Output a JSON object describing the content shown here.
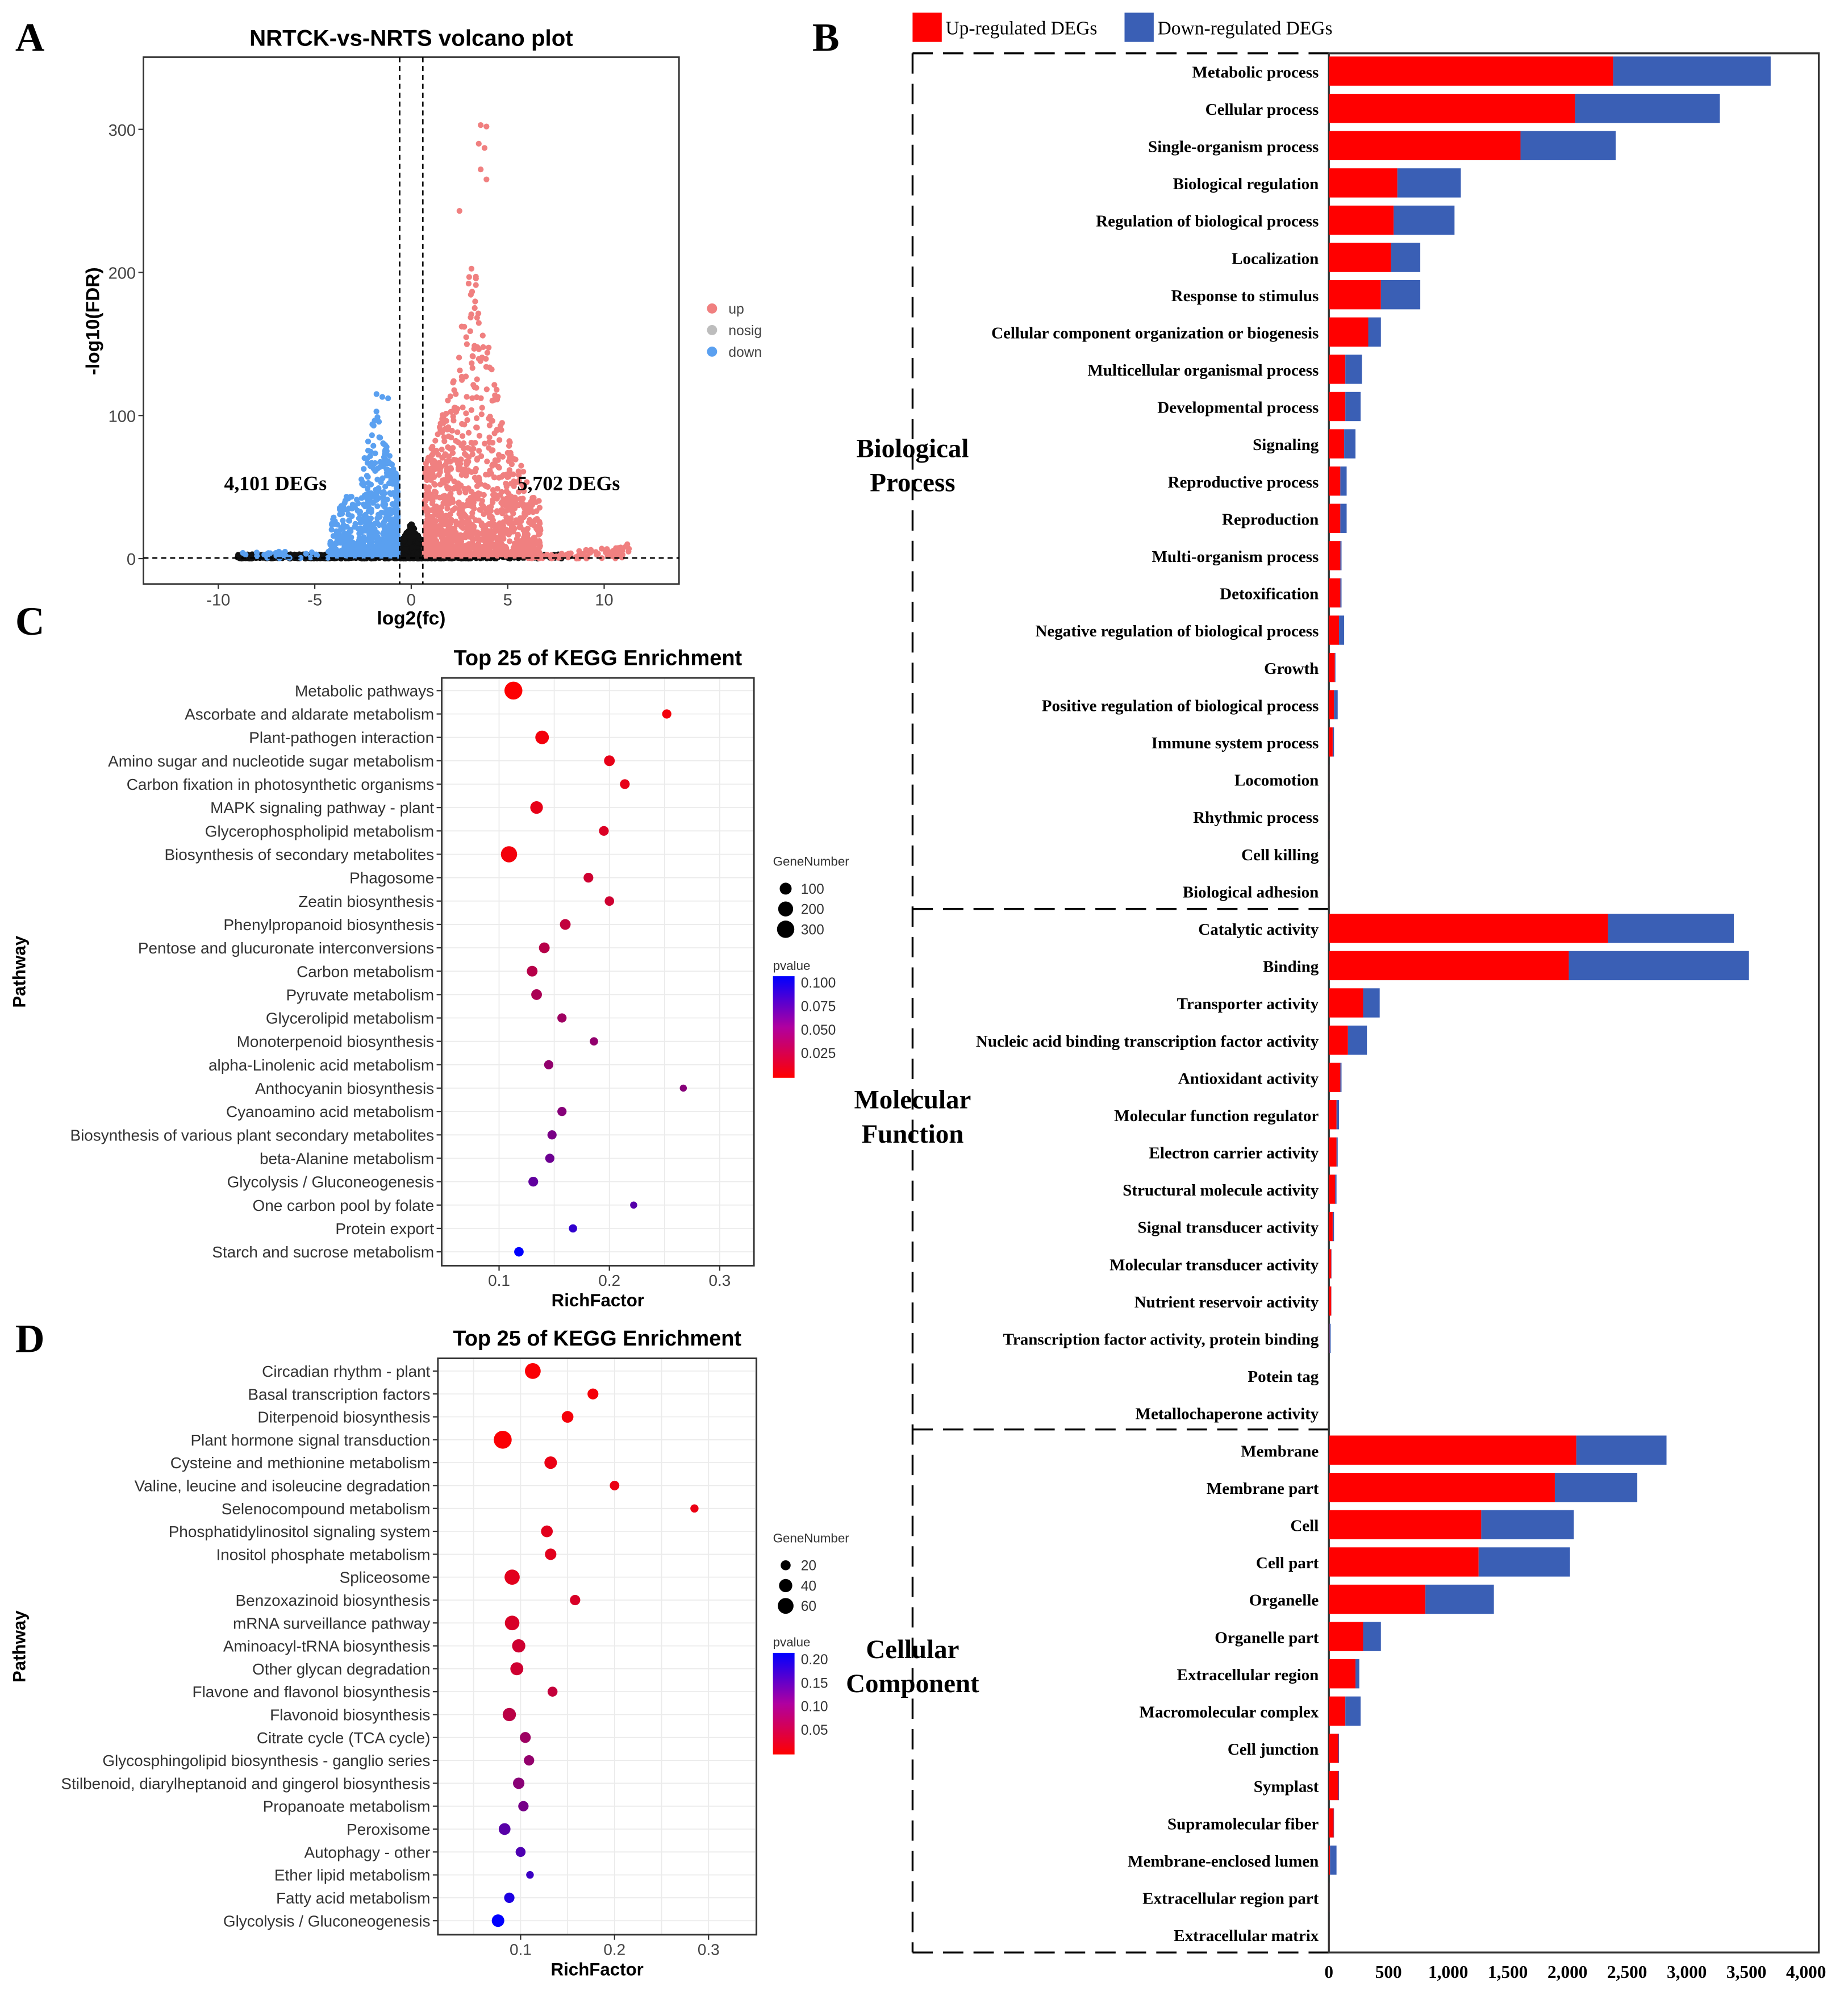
{
  "panels": {
    "a": "A",
    "b": "B",
    "c": "C",
    "d": "D"
  },
  "chart_data": [
    {
      "id": "volcano",
      "type": "scatter",
      "title": "NRTCK-vs-NRTS volcano plot",
      "xlabel": "log2(fc)",
      "ylabel": "-log10(FDR)",
      "xlim": [
        -14,
        14
      ],
      "ylim": [
        -10,
        345
      ],
      "xticks": [
        -10,
        -5,
        0,
        5,
        10
      ],
      "yticks": [
        0,
        100,
        200,
        300
      ],
      "fc_thresholds": [
        -0.6,
        0.6
      ],
      "fdr_threshold": 1.3,
      "legend": {
        "position": "right",
        "items": [
          {
            "label": "up",
            "color": "#f08080"
          },
          {
            "label": "nosig",
            "color": "#bdbdbd"
          },
          {
            "label": "down",
            "color": "#5aa0f0"
          }
        ]
      },
      "annotations": {
        "down": "4,101 DEGs",
        "up": "5,702 DEGs"
      },
      "counts": {
        "up": 5702,
        "down": 4101
      },
      "notable_points": [
        [
          3.6,
          303
        ],
        [
          3.9,
          302
        ],
        [
          3.5,
          290
        ],
        [
          3.8,
          287
        ],
        [
          3.6,
          272
        ],
        [
          3.9,
          265
        ],
        [
          2.5,
          243
        ],
        [
          -1.8,
          115
        ],
        [
          -1.5,
          113
        ],
        [
          -1.2,
          112
        ],
        [
          11.2,
          10
        ]
      ]
    },
    {
      "id": "go",
      "type": "bar",
      "stacked": true,
      "orientation": "horizontal",
      "legend": {
        "position": "top",
        "items": [
          {
            "label": "Up-regulated DEGs",
            "color": "#ff0000"
          },
          {
            "label": "Down-regulated DEGs",
            "color": "#3a5fb5"
          }
        ]
      },
      "xlim": [
        0,
        4000
      ],
      "xticks": [
        "0",
        "500",
        "1,000",
        "1,500",
        "2,000",
        "2,500",
        "3,000",
        "3,500",
        "4,000"
      ],
      "groups": [
        {
          "name_lines": [
            "Biological",
            "Process"
          ],
          "categories": [
            [
              "Metabolic process",
              2383,
              1320
            ],
            [
              "Cellular process",
              2064,
              1213
            ],
            [
              "Single-organism process",
              1606,
              798
            ],
            [
              "Biological regulation",
              574,
              532
            ],
            [
              "Regulation of biological process",
              543,
              510
            ],
            [
              "Localization",
              521,
              245
            ],
            [
              "Response to stimulus",
              436,
              330
            ],
            [
              "Cellular component organization or biogenesis",
              330,
              106
            ],
            [
              "Multicellular organismal process",
              138,
              139
            ],
            [
              "Developmental process",
              138,
              128
            ],
            [
              "Signaling",
              128,
              95
            ],
            [
              "Reproductive process",
              96,
              53
            ],
            [
              "Reproduction",
              96,
              53
            ],
            [
              "Multi-organism process",
              96,
              10
            ],
            [
              "Detoxification",
              96,
              10
            ],
            [
              "Negative regulation of biological process",
              85,
              43
            ],
            [
              "Growth",
              50,
              5
            ],
            [
              "Positive regulation of biological process",
              43,
              31
            ],
            [
              "Immune system process",
              32,
              11
            ],
            [
              "Locomotion",
              2,
              1
            ],
            [
              "Rhythmic process",
              2,
              1
            ],
            [
              "Cell killing",
              2,
              1
            ],
            [
              "Biological adhesion",
              2,
              1
            ]
          ]
        },
        {
          "name_lines": [
            "Molecular",
            "Function"
          ],
          "categories": [
            [
              "Catalytic activity",
              2340,
              1054
            ],
            [
              "Binding",
              2011,
              1510
            ],
            [
              "Transporter activity",
              287,
              139
            ],
            [
              "Nucleic acid binding transcription factor activity",
              160,
              159
            ],
            [
              "Antioxidant activity",
              96,
              10
            ],
            [
              "Molecular function regulator",
              64,
              21
            ],
            [
              "Electron carrier activity",
              64,
              10
            ],
            [
              "Structural molecule activity",
              53,
              11
            ],
            [
              "Signal transducer activity",
              32,
              11
            ],
            [
              "Molecular transducer activity",
              20,
              2
            ],
            [
              "Nutrient reservoir activity",
              20,
              1
            ],
            [
              "Transcription factor activity, protein binding",
              5,
              10
            ],
            [
              "Potein tag",
              1,
              0
            ],
            [
              "Metallochaperone activity",
              1,
              0
            ]
          ]
        },
        {
          "name_lines": [
            "Cellular",
            "Component"
          ],
          "categories": [
            [
              "Membrane",
              2074,
              756
            ],
            [
              "Membrane part",
              1894,
              691
            ],
            [
              "Cell",
              1277,
              776
            ],
            [
              "Cell part",
              1255,
              766
            ],
            [
              "Organelle",
              809,
              574
            ],
            [
              "Organelle part",
              287,
              149
            ],
            [
              "Extracellular region",
              223,
              32
            ],
            [
              "Macromolecular complex",
              138,
              128
            ],
            [
              "Cell junction",
              80,
              5
            ],
            [
              "Symplast",
              80,
              5
            ],
            [
              "Supramolecular fiber",
              40,
              3
            ],
            [
              "Membrane-enclosed lumen",
              10,
              54
            ],
            [
              "Extracellular region part",
              2,
              1
            ],
            [
              "Extracellular matrix",
              1,
              0
            ]
          ]
        }
      ]
    },
    {
      "id": "kegg_c",
      "type": "scatter",
      "title": "Top 25 of KEGG Enrichment",
      "xlabel": "RichFactor",
      "ylabel": "Pathway",
      "xlim": [
        0.048,
        0.331
      ],
      "xticks": [
        0.1,
        0.2,
        0.3
      ],
      "size_legend": {
        "title": "GeneNumber",
        "values": [
          100,
          200,
          300
        ]
      },
      "color_legend": {
        "title": "pvalue",
        "ticks": [
          "0.100",
          "0.075",
          "0.050",
          "0.025"
        ],
        "range": [
          0,
          0.105
        ],
        "low_color": "#ff0000",
        "high_color": "#0000ff"
      },
      "points": [
        [
          "Metabolic pathways",
          0.113,
          330,
          0.001
        ],
        [
          "Ascorbate and aldarate metabolism",
          0.252,
          40,
          0.005
        ],
        [
          "Plant-pathogen interaction",
          0.139,
          150,
          0.005
        ],
        [
          "Amino sugar and nucleotide sugar metabolism",
          0.2,
          70,
          0.01
        ],
        [
          "Carbon fixation in photosynthetic organisms",
          0.214,
          50,
          0.01
        ],
        [
          "MAPK signaling pathway - plant",
          0.134,
          120,
          0.01
        ],
        [
          "Glycerophospholipid metabolism",
          0.195,
          50,
          0.015
        ],
        [
          "Biosynthesis of secondary metabolites",
          0.109,
          250,
          0.005
        ],
        [
          "Phagosome",
          0.181,
          50,
          0.02
        ],
        [
          "Zeatin biosynthesis",
          0.2,
          45,
          0.02
        ],
        [
          "Phenylpropanoid biosynthesis",
          0.16,
          70,
          0.025
        ],
        [
          "Pentose and glucuronate interconversions",
          0.141,
          70,
          0.03
        ],
        [
          "Carbon metabolism",
          0.13,
          70,
          0.03
        ],
        [
          "Pyruvate metabolism",
          0.134,
          70,
          0.035
        ],
        [
          "Glycerolipid metabolism",
          0.157,
          40,
          0.04
        ],
        [
          "Monoterpenoid biosynthesis",
          0.186,
          25,
          0.045
        ],
        [
          "alpha-Linolenic acid metabolism",
          0.145,
          40,
          0.045
        ],
        [
          "Anthocyanin biosynthesis",
          0.267,
          12,
          0.05
        ],
        [
          "Cyanoamino acid metabolism",
          0.157,
          40,
          0.05
        ],
        [
          "Biosynthesis of various plant secondary metabolites",
          0.148,
          40,
          0.055
        ],
        [
          "beta-Alanine metabolism",
          0.146,
          40,
          0.06
        ],
        [
          "Glycolysis / Gluconeogenesis",
          0.131,
          50,
          0.065
        ],
        [
          "One carbon pool by folate",
          0.222,
          12,
          0.07
        ],
        [
          "Protein export",
          0.167,
          25,
          0.085
        ],
        [
          "Starch and sucrose metabolism",
          0.118,
          45,
          0.105
        ]
      ]
    },
    {
      "id": "kegg_d",
      "type": "scatter",
      "title": "Top 25 of KEGG Enrichment",
      "xlabel": "RichFactor",
      "ylabel": "Pathway",
      "xlim": [
        0.012,
        0.351
      ],
      "xticks": [
        0.1,
        0.2,
        0.3
      ],
      "size_legend": {
        "title": "GeneNumber",
        "values": [
          20,
          40,
          60
        ]
      },
      "color_legend": {
        "title": "pvalue",
        "ticks": [
          "0.20",
          "0.15",
          "0.10",
          "0.05"
        ],
        "range": [
          0,
          0.26
        ],
        "low_color": "#ff0000",
        "high_color": "#0000ff"
      },
      "points": [
        [
          "Circadian rhythm - plant",
          0.113,
          60,
          0.005
        ],
        [
          "Basal transcription factors",
          0.177,
          25,
          0.01
        ],
        [
          "Diterpenoid biosynthesis",
          0.15,
          30,
          0.01
        ],
        [
          "Plant hormone signal transduction",
          0.081,
          80,
          0.005
        ],
        [
          "Cysteine and methionine metabolism",
          0.132,
          35,
          0.02
        ],
        [
          "Valine, leucine and isoleucine degradation",
          0.2,
          18,
          0.02
        ],
        [
          "Selenocompound metabolism",
          0.285,
          12,
          0.02
        ],
        [
          "Phosphatidylinositol signaling system",
          0.128,
          30,
          0.03
        ],
        [
          "Inositol phosphate metabolism",
          0.132,
          28,
          0.03
        ],
        [
          "Spliceosome",
          0.091,
          55,
          0.03
        ],
        [
          "Benzoxazinoid biosynthesis",
          0.158,
          22,
          0.04
        ],
        [
          "mRNA surveillance pathway",
          0.091,
          50,
          0.04
        ],
        [
          "Aminoacyl-tRNA biosynthesis",
          0.098,
          40,
          0.05
        ],
        [
          "Other glycan degradation",
          0.096,
          38,
          0.05
        ],
        [
          "Flavone and flavonol biosynthesis",
          0.134,
          20,
          0.06
        ],
        [
          "Flavonoid biosynthesis",
          0.088,
          40,
          0.07
        ],
        [
          "Citrate cycle (TCA cycle)",
          0.105,
          25,
          0.1
        ],
        [
          "Glycosphingolipid biosynthesis - ganglio series",
          0.109,
          22,
          0.11
        ],
        [
          "Stilbenoid, diarylheptanoid and gingerol biosynthesis",
          0.098,
          28,
          0.12
        ],
        [
          "Propanoate metabolism",
          0.103,
          22,
          0.14
        ],
        [
          "Peroxisome",
          0.083,
          30,
          0.17
        ],
        [
          "Autophagy - other",
          0.1,
          20,
          0.18
        ],
        [
          "Ether lipid metabolism",
          0.11,
          10,
          0.2
        ],
        [
          "Fatty acid metabolism",
          0.088,
          22,
          0.23
        ],
        [
          "Glycolysis / Gluconeogenesis",
          0.076,
          35,
          0.26
        ]
      ]
    }
  ]
}
